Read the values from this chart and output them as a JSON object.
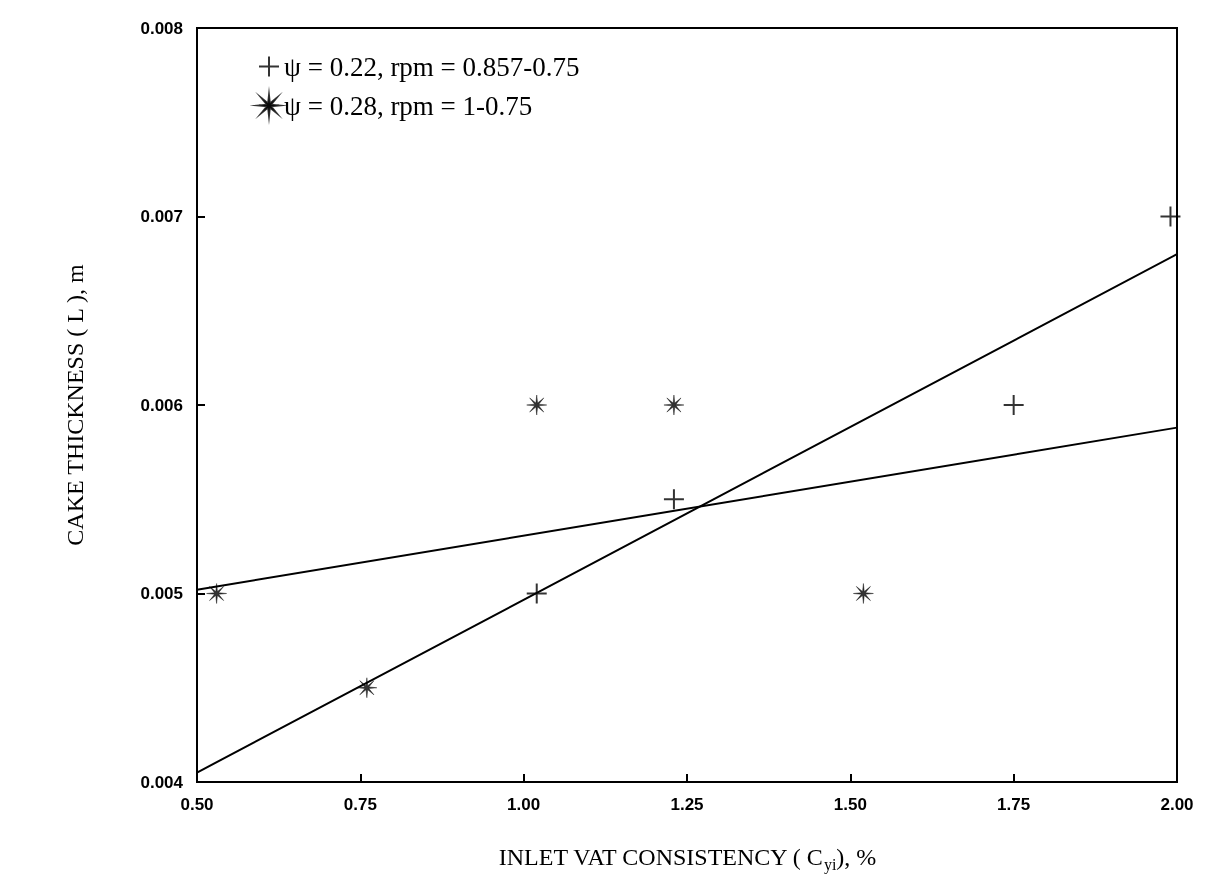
{
  "chart_data": {
    "type": "scatter",
    "xlabel": "INLET VAT CONSISTENCY ( C$_{yi}$), %",
    "ylabel": "CAKE THICKNESS ( L ), m",
    "xlim": [
      0.5,
      2.0
    ],
    "xticks": [
      {
        "value": 0.5,
        "label": "0.50"
      },
      {
        "value": 0.75,
        "label": "0.75"
      },
      {
        "value": 1.0,
        "label": "1.00"
      },
      {
        "value": 1.25,
        "label": "1.25"
      },
      {
        "value": 1.5,
        "label": "1.50"
      },
      {
        "value": 1.75,
        "label": "1.75"
      },
      {
        "value": 2.0,
        "label": "2.00"
      }
    ],
    "ylim": [
      0.004,
      0.008
    ],
    "yticks": [
      0.004,
      0.005,
      0.006,
      0.007,
      0.008
    ],
    "grid": false,
    "legend": "top left",
    "series": [
      {
        "name": "ψ = 0.22, rpm = 0.857-0.75",
        "color": "#000000",
        "marker": "cross",
        "x": [
          1.02,
          1.23,
          1.75,
          1.99
        ],
        "values": [
          0.005,
          0.0055,
          0.006,
          0.007
        ]
      },
      {
        "name": "ψ = 0.28, rpm = 1-0.75",
        "color": "#000000",
        "marker": "star",
        "x": [
          0.53,
          0.76,
          1.02,
          1.23,
          1.52
        ],
        "values": [
          0.005,
          0.0045,
          0.006,
          0.006,
          0.005
        ]
      },
      {
        "type": "line",
        "color": "#000000",
        "marker": "none",
        "x": [
          0.5,
          2.0
        ],
        "values": [
          0.00405,
          0.0068
        ]
      },
      {
        "type": "line",
        "color": "#000000",
        "marker": "none",
        "x": [
          0.5,
          2.0
        ],
        "values": [
          0.00502,
          0.00588
        ]
      }
    ]
  }
}
